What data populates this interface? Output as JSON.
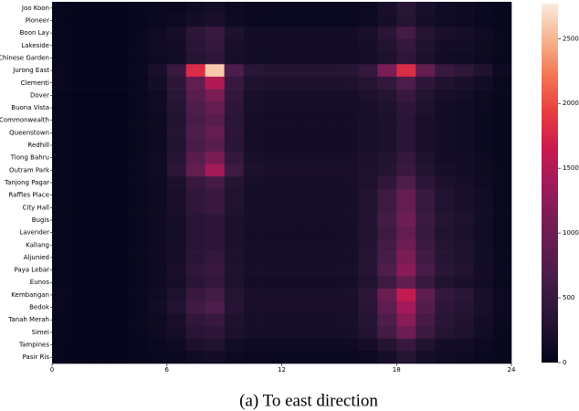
{
  "chart_data": {
    "type": "heatmap",
    "caption": "(a) To east direction",
    "rows": [
      "Joo Koon",
      "Pioneer",
      "Boon Lay",
      "Lakeside",
      "Chinese Garden",
      "Jurong East",
      "Clementi",
      "Dover",
      "Buona Vista",
      "Commonwealth",
      "Queenstown",
      "Redhill",
      "Tiong Bahru",
      "Outram Park",
      "Tanjong Pagar",
      "Raffles Place",
      "City Hall",
      "Bugis",
      "Lavender",
      "Kallang",
      "Aljunied",
      "Paya Lebar",
      "Eunos",
      "Kembangan",
      "Bedok",
      "Tanah Merah",
      "Simei",
      "Tampines",
      "Pasir Ris"
    ],
    "xlim": [
      0,
      24
    ],
    "xticks": [
      0,
      6,
      12,
      18,
      24
    ],
    "clim": [
      0,
      2770
    ],
    "cticks": [
      0,
      500,
      1000,
      1500,
      2000,
      2500
    ],
    "values": [
      [
        30,
        20,
        20,
        20,
        40,
        60,
        60,
        120,
        150,
        80,
        60,
        60,
        60,
        60,
        60,
        60,
        80,
        200,
        350,
        200,
        120,
        100,
        70,
        40
      ],
      [
        30,
        20,
        20,
        20,
        40,
        70,
        80,
        160,
        200,
        100,
        70,
        70,
        70,
        70,
        70,
        70,
        90,
        180,
        300,
        170,
        110,
        90,
        60,
        40
      ],
      [
        40,
        20,
        20,
        20,
        50,
        120,
        180,
        400,
        500,
        230,
        150,
        150,
        150,
        150,
        150,
        150,
        200,
        360,
        600,
        330,
        210,
        180,
        120,
        60
      ],
      [
        40,
        20,
        20,
        20,
        50,
        110,
        160,
        360,
        450,
        200,
        140,
        140,
        140,
        140,
        140,
        140,
        180,
        270,
        450,
        250,
        160,
        130,
        90,
        50
      ],
      [
        40,
        20,
        20,
        20,
        50,
        100,
        140,
        320,
        400,
        180,
        130,
        130,
        130,
        130,
        130,
        130,
        170,
        240,
        400,
        220,
        140,
        120,
        80,
        40
      ],
      [
        60,
        30,
        30,
        30,
        70,
        200,
        500,
        1800,
        2600,
        700,
        350,
        300,
        300,
        300,
        300,
        320,
        450,
        1100,
        1800,
        900,
        500,
        400,
        250,
        100
      ],
      [
        50,
        20,
        20,
        20,
        60,
        150,
        400,
        900,
        1500,
        500,
        250,
        220,
        220,
        220,
        220,
        230,
        300,
        450,
        700,
        400,
        250,
        200,
        130,
        60
      ],
      [
        40,
        20,
        20,
        20,
        50,
        120,
        350,
        800,
        1100,
        450,
        200,
        180,
        180,
        180,
        180,
        180,
        220,
        300,
        500,
        280,
        180,
        150,
        100,
        50
      ],
      [
        40,
        20,
        20,
        20,
        50,
        110,
        300,
        700,
        900,
        400,
        190,
        170,
        170,
        170,
        170,
        170,
        200,
        250,
        400,
        230,
        150,
        120,
        80,
        40
      ],
      [
        40,
        20,
        20,
        20,
        50,
        100,
        280,
        650,
        800,
        350,
        170,
        160,
        160,
        160,
        160,
        160,
        190,
        220,
        350,
        200,
        140,
        110,
        70,
        40
      ],
      [
        40,
        20,
        20,
        20,
        50,
        100,
        300,
        700,
        900,
        380,
        170,
        160,
        160,
        160,
        160,
        160,
        190,
        220,
        350,
        200,
        140,
        110,
        70,
        40
      ],
      [
        40,
        20,
        20,
        20,
        50,
        100,
        280,
        650,
        800,
        350,
        170,
        160,
        160,
        160,
        160,
        160,
        190,
        220,
        350,
        200,
        140,
        110,
        70,
        40
      ],
      [
        40,
        20,
        20,
        20,
        50,
        110,
        330,
        800,
        1100,
        450,
        200,
        180,
        180,
        180,
        180,
        180,
        220,
        280,
        450,
        250,
        160,
        130,
        90,
        40
      ],
      [
        40,
        20,
        20,
        20,
        50,
        120,
        380,
        900,
        1400,
        550,
        220,
        200,
        200,
        200,
        200,
        200,
        240,
        300,
        500,
        280,
        180,
        150,
        100,
        50
      ],
      [
        40,
        20,
        20,
        20,
        50,
        100,
        220,
        500,
        600,
        300,
        180,
        170,
        170,
        170,
        170,
        180,
        250,
        420,
        700,
        380,
        220,
        180,
        120,
        50
      ],
      [
        40,
        20,
        20,
        20,
        50,
        90,
        200,
        420,
        500,
        260,
        170,
        170,
        170,
        170,
        170,
        180,
        280,
        550,
        900,
        480,
        260,
        200,
        130,
        60
      ],
      [
        40,
        20,
        20,
        20,
        50,
        90,
        200,
        420,
        500,
        260,
        170,
        170,
        170,
        170,
        170,
        180,
        280,
        550,
        900,
        480,
        260,
        200,
        130,
        60
      ],
      [
        40,
        20,
        20,
        20,
        50,
        90,
        170,
        340,
        400,
        220,
        170,
        170,
        170,
        170,
        170,
        180,
        290,
        600,
        1000,
        530,
        300,
        230,
        140,
        60
      ],
      [
        40,
        20,
        20,
        20,
        50,
        90,
        170,
        340,
        400,
        220,
        160,
        160,
        160,
        160,
        160,
        170,
        270,
        550,
        900,
        480,
        270,
        210,
        130,
        60
      ],
      [
        40,
        20,
        20,
        20,
        50,
        90,
        170,
        340,
        400,
        220,
        170,
        170,
        170,
        170,
        170,
        180,
        290,
        600,
        1000,
        530,
        300,
        230,
        140,
        60
      ],
      [
        40,
        20,
        20,
        20,
        50,
        100,
        180,
        370,
        450,
        230,
        170,
        170,
        170,
        170,
        170,
        180,
        300,
        650,
        1100,
        580,
        320,
        250,
        150,
        60
      ],
      [
        40,
        20,
        20,
        20,
        50,
        100,
        200,
        420,
        500,
        250,
        180,
        180,
        180,
        180,
        180,
        190,
        320,
        700,
        1200,
        630,
        350,
        270,
        160,
        70
      ],
      [
        40,
        20,
        20,
        20,
        50,
        100,
        180,
        370,
        450,
        230,
        160,
        160,
        160,
        160,
        160,
        170,
        270,
        550,
        900,
        480,
        270,
        210,
        130,
        60
      ],
      [
        50,
        20,
        20,
        20,
        60,
        120,
        230,
        500,
        600,
        300,
        200,
        200,
        200,
        200,
        200,
        210,
        380,
        950,
        1600,
        850,
        450,
        350,
        200,
        80
      ],
      [
        50,
        20,
        20,
        20,
        60,
        130,
        260,
        580,
        700,
        330,
        200,
        200,
        200,
        200,
        200,
        210,
        360,
        850,
        1400,
        750,
        400,
        320,
        190,
        80
      ],
      [
        40,
        20,
        20,
        20,
        50,
        100,
        200,
        420,
        500,
        250,
        180,
        180,
        180,
        180,
        180,
        190,
        320,
        700,
        1200,
        630,
        350,
        270,
        160,
        70
      ],
      [
        40,
        20,
        20,
        20,
        50,
        90,
        170,
        340,
        400,
        220,
        170,
        170,
        170,
        170,
        170,
        180,
        290,
        600,
        1000,
        530,
        300,
        230,
        140,
        60
      ],
      [
        30,
        20,
        20,
        20,
        40,
        70,
        110,
        220,
        250,
        140,
        100,
        100,
        100,
        100,
        100,
        110,
        170,
        300,
        500,
        270,
        160,
        130,
        80,
        40
      ],
      [
        30,
        20,
        20,
        20,
        40,
        60,
        60,
        120,
        150,
        80,
        60,
        60,
        60,
        60,
        60,
        60,
        80,
        170,
        300,
        170,
        110,
        90,
        60,
        40
      ]
    ]
  }
}
